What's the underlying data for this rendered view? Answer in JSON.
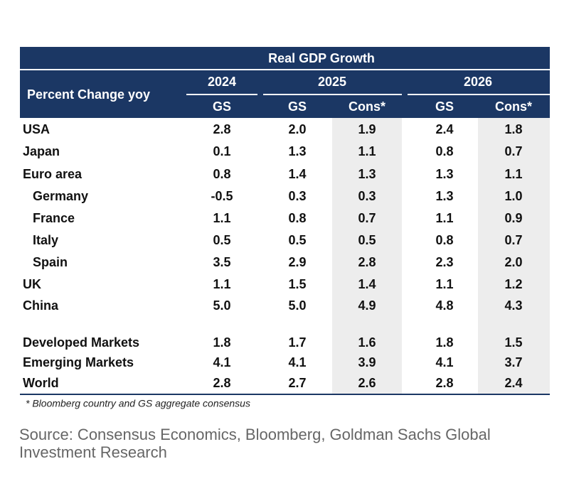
{
  "table": {
    "title": "Real GDP Growth",
    "stub_header": "Percent Change yoy",
    "years": [
      "2024",
      "2025",
      "2026"
    ],
    "subheaders": [
      "GS",
      "GS",
      "Cons*",
      "GS",
      "Cons*"
    ],
    "rows": [
      [
        "USA",
        "2.8",
        "2.0",
        "1.9",
        "2.4",
        "1.8"
      ],
      [
        "Japan",
        "0.1",
        "1.3",
        "1.1",
        "0.8",
        "0.7"
      ],
      [
        "Euro area",
        "0.8",
        "1.4",
        "1.3",
        "1.3",
        "1.1"
      ],
      [
        "Germany",
        "-0.5",
        "0.3",
        "0.3",
        "1.3",
        "1.0"
      ],
      [
        "France",
        "1.1",
        "0.8",
        "0.7",
        "1.1",
        "0.9"
      ],
      [
        "Italy",
        "0.5",
        "0.5",
        "0.5",
        "0.8",
        "0.7"
      ],
      [
        "Spain",
        "3.5",
        "2.9",
        "2.8",
        "2.3",
        "2.0"
      ],
      [
        "UK",
        "1.1",
        "1.5",
        "1.4",
        "1.1",
        "1.2"
      ],
      [
        "China",
        "5.0",
        "5.0",
        "4.9",
        "4.8",
        "4.3"
      ],
      [
        "Developed Markets",
        "1.8",
        "1.7",
        "1.6",
        "1.8",
        "1.5"
      ],
      [
        "Emerging Markets",
        "4.1",
        "4.1",
        "3.9",
        "4.1",
        "3.7"
      ],
      [
        "World",
        "2.8",
        "2.7",
        "2.6",
        "2.8",
        "2.4"
      ]
    ],
    "footnote": "* Bloomberg country and GS aggregate consensus"
  },
  "source": [
    "Source: Consensus Economics, Bloomberg, Goldman Sachs Global",
    "Investment Research"
  ]
}
